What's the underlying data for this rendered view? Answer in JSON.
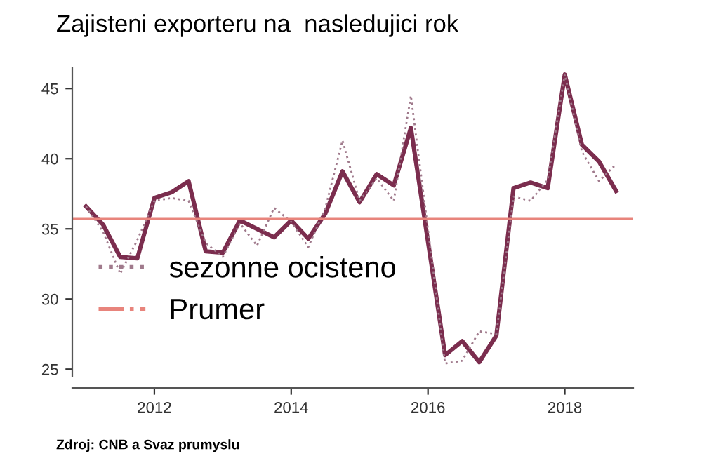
{
  "chart_data": {
    "type": "line",
    "title": "Zajisteni exporteru na  nasledujici rok",
    "annotations": [
      "Zdroj: CNB a Svaz prumyslu"
    ],
    "series": [
      {
        "color": "#7b2d4e",
        "line_style": "solid",
        "x": [
          2011.0,
          2011.25,
          2011.5,
          2011.75,
          2012.0,
          2012.25,
          2012.5,
          2012.75,
          2013.0,
          2013.25,
          2013.5,
          2013.75,
          2014.0,
          2014.25,
          2014.5,
          2014.75,
          2015.0,
          2015.25,
          2015.5,
          2015.75,
          2016.25,
          2016.5,
          2016.75,
          2017.0,
          2017.25,
          2017.5,
          2017.75,
          2018.0,
          2018.25,
          2018.5,
          2018.75
        ],
        "values": [
          36.6,
          35.3,
          33.0,
          32.9,
          37.2,
          37.6,
          38.4,
          33.4,
          33.3,
          35.6,
          35.0,
          34.4,
          35.6,
          34.3,
          36.1,
          39.1,
          36.9,
          38.9,
          38.1,
          42.2,
          26.0,
          27.0,
          25.5,
          27.4,
          37.9,
          38.3,
          37.9,
          46.0,
          41.0,
          39.8,
          37.7
        ]
      },
      {
        "name": "sezonne ocisteno",
        "color": "#a07a8c",
        "line_style": "dotted",
        "x": [
          2011.0,
          2011.25,
          2011.5,
          2011.75,
          2012.0,
          2012.25,
          2012.5,
          2012.75,
          2013.0,
          2013.25,
          2013.5,
          2013.75,
          2014.0,
          2014.25,
          2014.5,
          2014.75,
          2015.0,
          2015.25,
          2015.5,
          2015.75,
          2016.25,
          2016.5,
          2016.75,
          2017.0,
          2017.25,
          2017.5,
          2017.75,
          2018.0,
          2018.25,
          2018.5,
          2018.75
        ],
        "values": [
          36.6,
          34.8,
          31.8,
          34.2,
          37.0,
          37.2,
          37.0,
          34.0,
          33.0,
          35.4,
          33.8,
          36.5,
          35.5,
          33.7,
          36.5,
          41.3,
          37.0,
          38.6,
          37.0,
          44.5,
          25.4,
          25.6,
          27.7,
          27.5,
          37.3,
          37.0,
          38.5,
          46.0,
          40.5,
          38.4,
          39.6
        ]
      }
    ],
    "ref_lines": [
      {
        "axis": "y",
        "value": 35.7,
        "label": "Prumer",
        "color": "#e8847c",
        "line_style": "solid"
      }
    ],
    "xlim": [
      2010.8,
      2019.0
    ],
    "xticks": [
      2012,
      2014,
      2016,
      2018
    ],
    "ylim": [
      24.5,
      46.5
    ],
    "yticks": [
      25,
      30,
      35,
      40,
      45
    ],
    "grid": false,
    "legend": "bottom left"
  }
}
